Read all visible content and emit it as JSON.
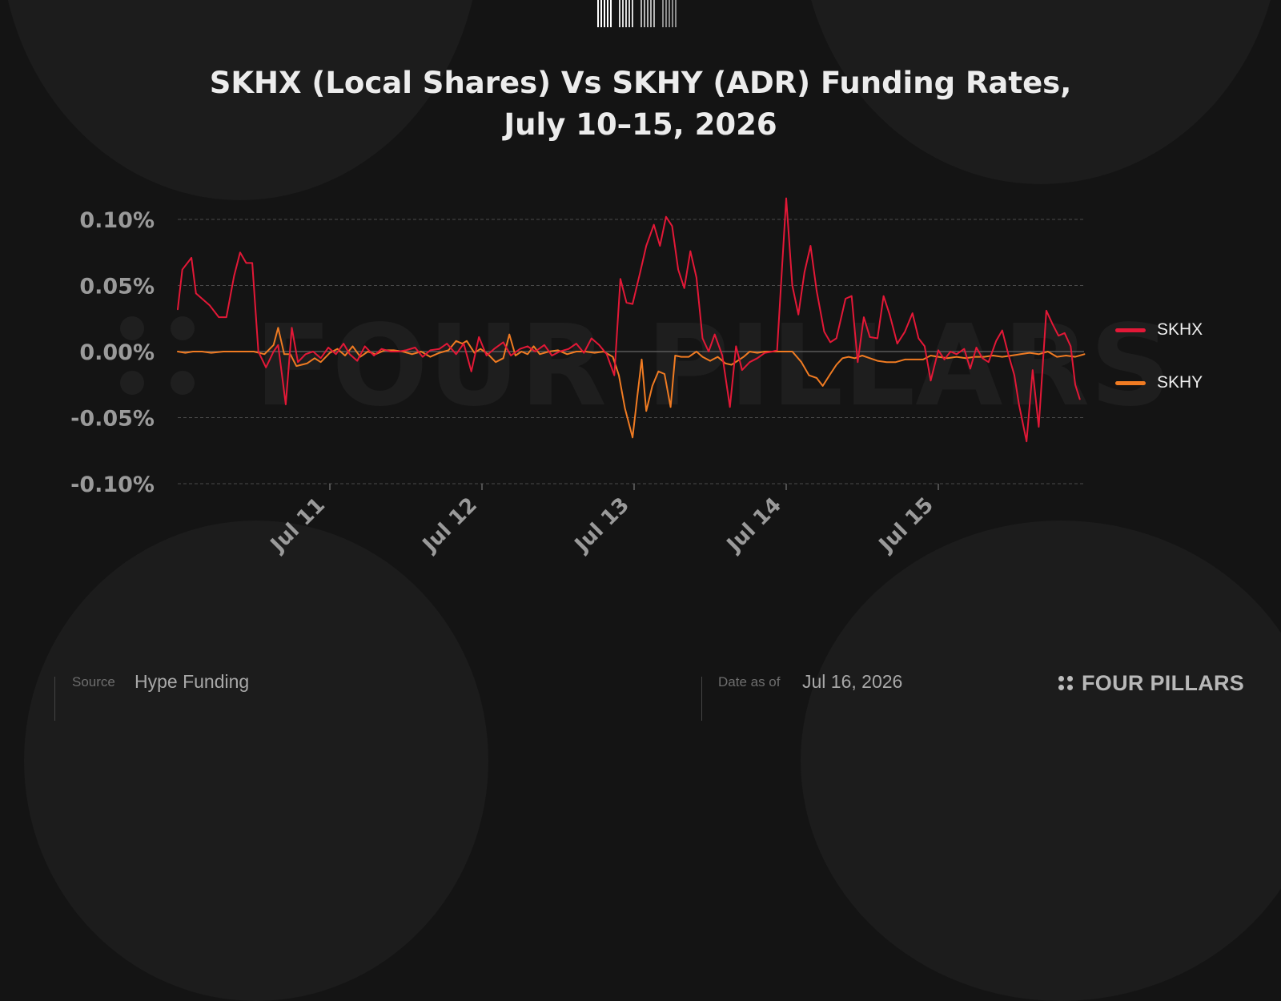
{
  "logo": {
    "name": "four-pillars-barcode-logo"
  },
  "chart_data": {
    "type": "line",
    "title": [
      "SKHX (Local Shares) Vs SKHY (ADR) Funding Rates,",
      "July 10–15, 2026"
    ],
    "xlabel": "",
    "ylabel": "",
    "x_ticks": [
      "Jul 11",
      "Jul 12",
      "Jul 13",
      "Jul 14",
      "Jul 15"
    ],
    "x_tick_values": [
      1,
      2,
      3,
      4,
      5
    ],
    "x_range": [
      0,
      5.96
    ],
    "y_ticks": [
      "0.10%",
      "0.05%",
      "0.00%",
      "-0.05%",
      "-0.10%"
    ],
    "y_tick_values": [
      0.1,
      0.05,
      0.0,
      -0.05,
      -0.1
    ],
    "ylim": [
      -0.1,
      0.1
    ],
    "grid": "horizontal dashed",
    "legend_position": "right",
    "watermark": "FOUR PILLARS",
    "series": [
      {
        "name": "SKHX",
        "color": "#e31837",
        "points": [
          [
            0,
            0.032
          ],
          [
            0.03,
            0.062
          ],
          [
            0.09,
            0.071
          ],
          [
            0.12,
            0.044
          ],
          [
            0.16,
            0.04
          ],
          [
            0.21,
            0.035
          ],
          [
            0.27,
            0.026
          ],
          [
            0.32,
            0.026
          ],
          [
            0.37,
            0.057
          ],
          [
            0.41,
            0.075
          ],
          [
            0.45,
            0.067
          ],
          [
            0.49,
            0.067
          ],
          [
            0.53,
            0.0
          ],
          [
            0.58,
            -0.012
          ],
          [
            0.63,
            0.0
          ],
          [
            0.66,
            0.005
          ],
          [
            0.71,
            -0.04
          ],
          [
            0.75,
            0.018
          ],
          [
            0.79,
            -0.008
          ],
          [
            0.84,
            -0.002
          ],
          [
            0.89,
            0.0
          ],
          [
            0.94,
            -0.005
          ],
          [
            0.99,
            0.003
          ],
          [
            1.04,
            -0.002
          ],
          [
            1.09,
            0.006
          ],
          [
            1.13,
            -0.002
          ],
          [
            1.18,
            -0.007
          ],
          [
            1.23,
            0.004
          ],
          [
            1.29,
            -0.003
          ],
          [
            1.34,
            0.002
          ],
          [
            1.4,
            0.0
          ],
          [
            1.45,
            0.0
          ],
          [
            1.5,
            0.001
          ],
          [
            1.56,
            0.003
          ],
          [
            1.61,
            -0.004
          ],
          [
            1.66,
            0.001
          ],
          [
            1.72,
            0.002
          ],
          [
            1.77,
            0.006
          ],
          [
            1.83,
            -0.002
          ],
          [
            1.88,
            0.006
          ],
          [
            1.93,
            -0.015
          ],
          [
            1.98,
            0.011
          ],
          [
            2.03,
            -0.003
          ],
          [
            2.08,
            0.002
          ],
          [
            2.14,
            0.007
          ],
          [
            2.19,
            -0.003
          ],
          [
            2.25,
            0.002
          ],
          [
            2.3,
            0.004
          ],
          [
            2.35,
            0.0
          ],
          [
            2.41,
            0.005
          ],
          [
            2.46,
            -0.003
          ],
          [
            2.51,
            0.0
          ],
          [
            2.57,
            0.002
          ],
          [
            2.62,
            0.006
          ],
          [
            2.67,
            -0.001
          ],
          [
            2.72,
            0.01
          ],
          [
            2.77,
            0.005
          ],
          [
            2.82,
            -0.002
          ],
          [
            2.87,
            -0.018
          ],
          [
            2.91,
            0.055
          ],
          [
            2.95,
            0.037
          ],
          [
            2.99,
            0.036
          ],
          [
            3.04,
            0.06
          ],
          [
            3.08,
            0.08
          ],
          [
            3.13,
            0.096
          ],
          [
            3.17,
            0.08
          ],
          [
            3.21,
            0.102
          ],
          [
            3.25,
            0.095
          ],
          [
            3.29,
            0.062
          ],
          [
            3.33,
            0.048
          ],
          [
            3.37,
            0.076
          ],
          [
            3.41,
            0.056
          ],
          [
            3.45,
            0.01
          ],
          [
            3.49,
            0.0
          ],
          [
            3.53,
            0.013
          ],
          [
            3.58,
            -0.003
          ],
          [
            3.63,
            -0.042
          ],
          [
            3.67,
            0.004
          ],
          [
            3.71,
            -0.014
          ],
          [
            3.76,
            -0.008
          ],
          [
            3.81,
            -0.005
          ],
          [
            3.86,
            -0.001
          ],
          [
            3.91,
            0.0
          ],
          [
            3.94,
            0.001
          ],
          [
            4.0,
            0.116
          ],
          [
            4.04,
            0.05
          ],
          [
            4.08,
            0.028
          ],
          [
            4.12,
            0.06
          ],
          [
            4.16,
            0.08
          ],
          [
            4.2,
            0.046
          ],
          [
            4.25,
            0.015
          ],
          [
            4.29,
            0.007
          ],
          [
            4.33,
            0.01
          ],
          [
            4.39,
            0.04
          ],
          [
            4.43,
            0.042
          ],
          [
            4.47,
            -0.008
          ],
          [
            4.51,
            0.026
          ],
          [
            4.55,
            0.011
          ],
          [
            4.6,
            0.01
          ],
          [
            4.64,
            0.042
          ],
          [
            4.68,
            0.028
          ],
          [
            4.73,
            0.006
          ],
          [
            4.78,
            0.015
          ],
          [
            4.83,
            0.029
          ],
          [
            4.87,
            0.01
          ],
          [
            4.91,
            0.004
          ],
          [
            4.95,
            -0.022
          ],
          [
            5.0,
            0.001
          ],
          [
            5.04,
            -0.006
          ],
          [
            5.08,
            0.0
          ],
          [
            5.12,
            -0.002
          ],
          [
            5.17,
            0.002
          ],
          [
            5.21,
            -0.013
          ],
          [
            5.25,
            0.003
          ],
          [
            5.29,
            -0.005
          ],
          [
            5.33,
            -0.008
          ],
          [
            5.38,
            0.008
          ],
          [
            5.42,
            0.016
          ],
          [
            5.46,
            -0.002
          ],
          [
            5.5,
            -0.018
          ],
          [
            5.53,
            -0.04
          ],
          [
            5.58,
            -0.068
          ],
          [
            5.62,
            -0.014
          ],
          [
            5.66,
            -0.057
          ],
          [
            5.71,
            0.031
          ],
          [
            5.75,
            0.021
          ],
          [
            5.79,
            0.012
          ],
          [
            5.83,
            0.014
          ],
          [
            5.87,
            0.004
          ],
          [
            5.9,
            -0.025
          ],
          [
            5.93,
            -0.036
          ]
        ]
      },
      {
        "name": "SKHY",
        "color": "#f07b22",
        "points": [
          [
            0,
            0.0
          ],
          [
            0.05,
            -0.001
          ],
          [
            0.1,
            0.0
          ],
          [
            0.16,
            0.0
          ],
          [
            0.22,
            -0.001
          ],
          [
            0.3,
            0.0
          ],
          [
            0.4,
            0.0
          ],
          [
            0.5,
            0.0
          ],
          [
            0.57,
            -0.002
          ],
          [
            0.63,
            0.005
          ],
          [
            0.66,
            0.018
          ],
          [
            0.7,
            -0.002
          ],
          [
            0.74,
            -0.002
          ],
          [
            0.78,
            -0.011
          ],
          [
            0.85,
            -0.009
          ],
          [
            0.9,
            -0.005
          ],
          [
            0.94,
            -0.008
          ],
          [
            1.0,
            -0.001
          ],
          [
            1.05,
            0.002
          ],
          [
            1.1,
            -0.003
          ],
          [
            1.15,
            0.004
          ],
          [
            1.2,
            -0.004
          ],
          [
            1.25,
            0.0
          ],
          [
            1.3,
            -0.002
          ],
          [
            1.36,
            0.001
          ],
          [
            1.42,
            0.001
          ],
          [
            1.48,
            0.0
          ],
          [
            1.54,
            -0.002
          ],
          [
            1.6,
            0.0
          ],
          [
            1.66,
            -0.004
          ],
          [
            1.72,
            -0.001
          ],
          [
            1.78,
            0.001
          ],
          [
            1.83,
            0.008
          ],
          [
            1.87,
            0.006
          ],
          [
            1.9,
            0.008
          ],
          [
            1.95,
            -0.001
          ],
          [
            1.99,
            0.002
          ],
          [
            2.04,
            -0.002
          ],
          [
            2.09,
            -0.008
          ],
          [
            2.14,
            -0.005
          ],
          [
            2.18,
            0.013
          ],
          [
            2.22,
            -0.003
          ],
          [
            2.26,
            0.0
          ],
          [
            2.3,
            -0.002
          ],
          [
            2.34,
            0.004
          ],
          [
            2.38,
            -0.002
          ],
          [
            2.44,
            0.0
          ],
          [
            2.5,
            0.001
          ],
          [
            2.56,
            -0.002
          ],
          [
            2.62,
            0.0
          ],
          [
            2.68,
            0.0
          ],
          [
            2.74,
            -0.001
          ],
          [
            2.8,
            0.0
          ],
          [
            2.86,
            -0.004
          ],
          [
            2.9,
            -0.018
          ],
          [
            2.94,
            -0.043
          ],
          [
            2.99,
            -0.065
          ],
          [
            3.02,
            -0.035
          ],
          [
            3.05,
            -0.006
          ],
          [
            3.08,
            -0.045
          ],
          [
            3.12,
            -0.026
          ],
          [
            3.16,
            -0.015
          ],
          [
            3.2,
            -0.017
          ],
          [
            3.24,
            -0.042
          ],
          [
            3.27,
            -0.003
          ],
          [
            3.31,
            -0.004
          ],
          [
            3.36,
            -0.004
          ],
          [
            3.41,
            0.0
          ],
          [
            3.45,
            -0.004
          ],
          [
            3.5,
            -0.007
          ],
          [
            3.55,
            -0.004
          ],
          [
            3.6,
            -0.009
          ],
          [
            3.64,
            -0.01
          ],
          [
            3.68,
            -0.007
          ],
          [
            3.72,
            -0.004
          ],
          [
            3.76,
            0.0
          ],
          [
            3.81,
            -0.001
          ],
          [
            3.86,
            0.0
          ],
          [
            3.92,
            0.0
          ],
          [
            3.98,
            0.0
          ],
          [
            4.04,
            0.0
          ],
          [
            4.1,
            -0.008
          ],
          [
            4.15,
            -0.018
          ],
          [
            4.2,
            -0.02
          ],
          [
            4.24,
            -0.026
          ],
          [
            4.29,
            -0.017
          ],
          [
            4.33,
            -0.01
          ],
          [
            4.37,
            -0.005
          ],
          [
            4.41,
            -0.004
          ],
          [
            4.45,
            -0.005
          ],
          [
            4.5,
            -0.003
          ],
          [
            4.55,
            -0.005
          ],
          [
            4.6,
            -0.007
          ],
          [
            4.66,
            -0.008
          ],
          [
            4.72,
            -0.008
          ],
          [
            4.78,
            -0.006
          ],
          [
            4.84,
            -0.006
          ],
          [
            4.9,
            -0.006
          ],
          [
            4.95,
            -0.003
          ],
          [
            5.0,
            -0.004
          ],
          [
            5.06,
            -0.005
          ],
          [
            5.12,
            -0.004
          ],
          [
            5.18,
            -0.005
          ],
          [
            5.24,
            -0.004
          ],
          [
            5.3,
            -0.004
          ],
          [
            5.36,
            -0.003
          ],
          [
            5.42,
            -0.004
          ],
          [
            5.48,
            -0.003
          ],
          [
            5.54,
            -0.002
          ],
          [
            5.6,
            -0.001
          ],
          [
            5.66,
            -0.002
          ],
          [
            5.72,
            0.0
          ],
          [
            5.78,
            -0.004
          ],
          [
            5.84,
            -0.003
          ],
          [
            5.9,
            -0.004
          ],
          [
            5.96,
            -0.002
          ]
        ]
      }
    ]
  },
  "legend": {
    "items": [
      "SKHX",
      "SKHY"
    ]
  },
  "footer": {
    "source_key": "Source",
    "source_value": "Hype Funding",
    "date_key": "Date as of",
    "date_value": "Jul 16, 2026",
    "brand": "FOUR PILLARS"
  }
}
